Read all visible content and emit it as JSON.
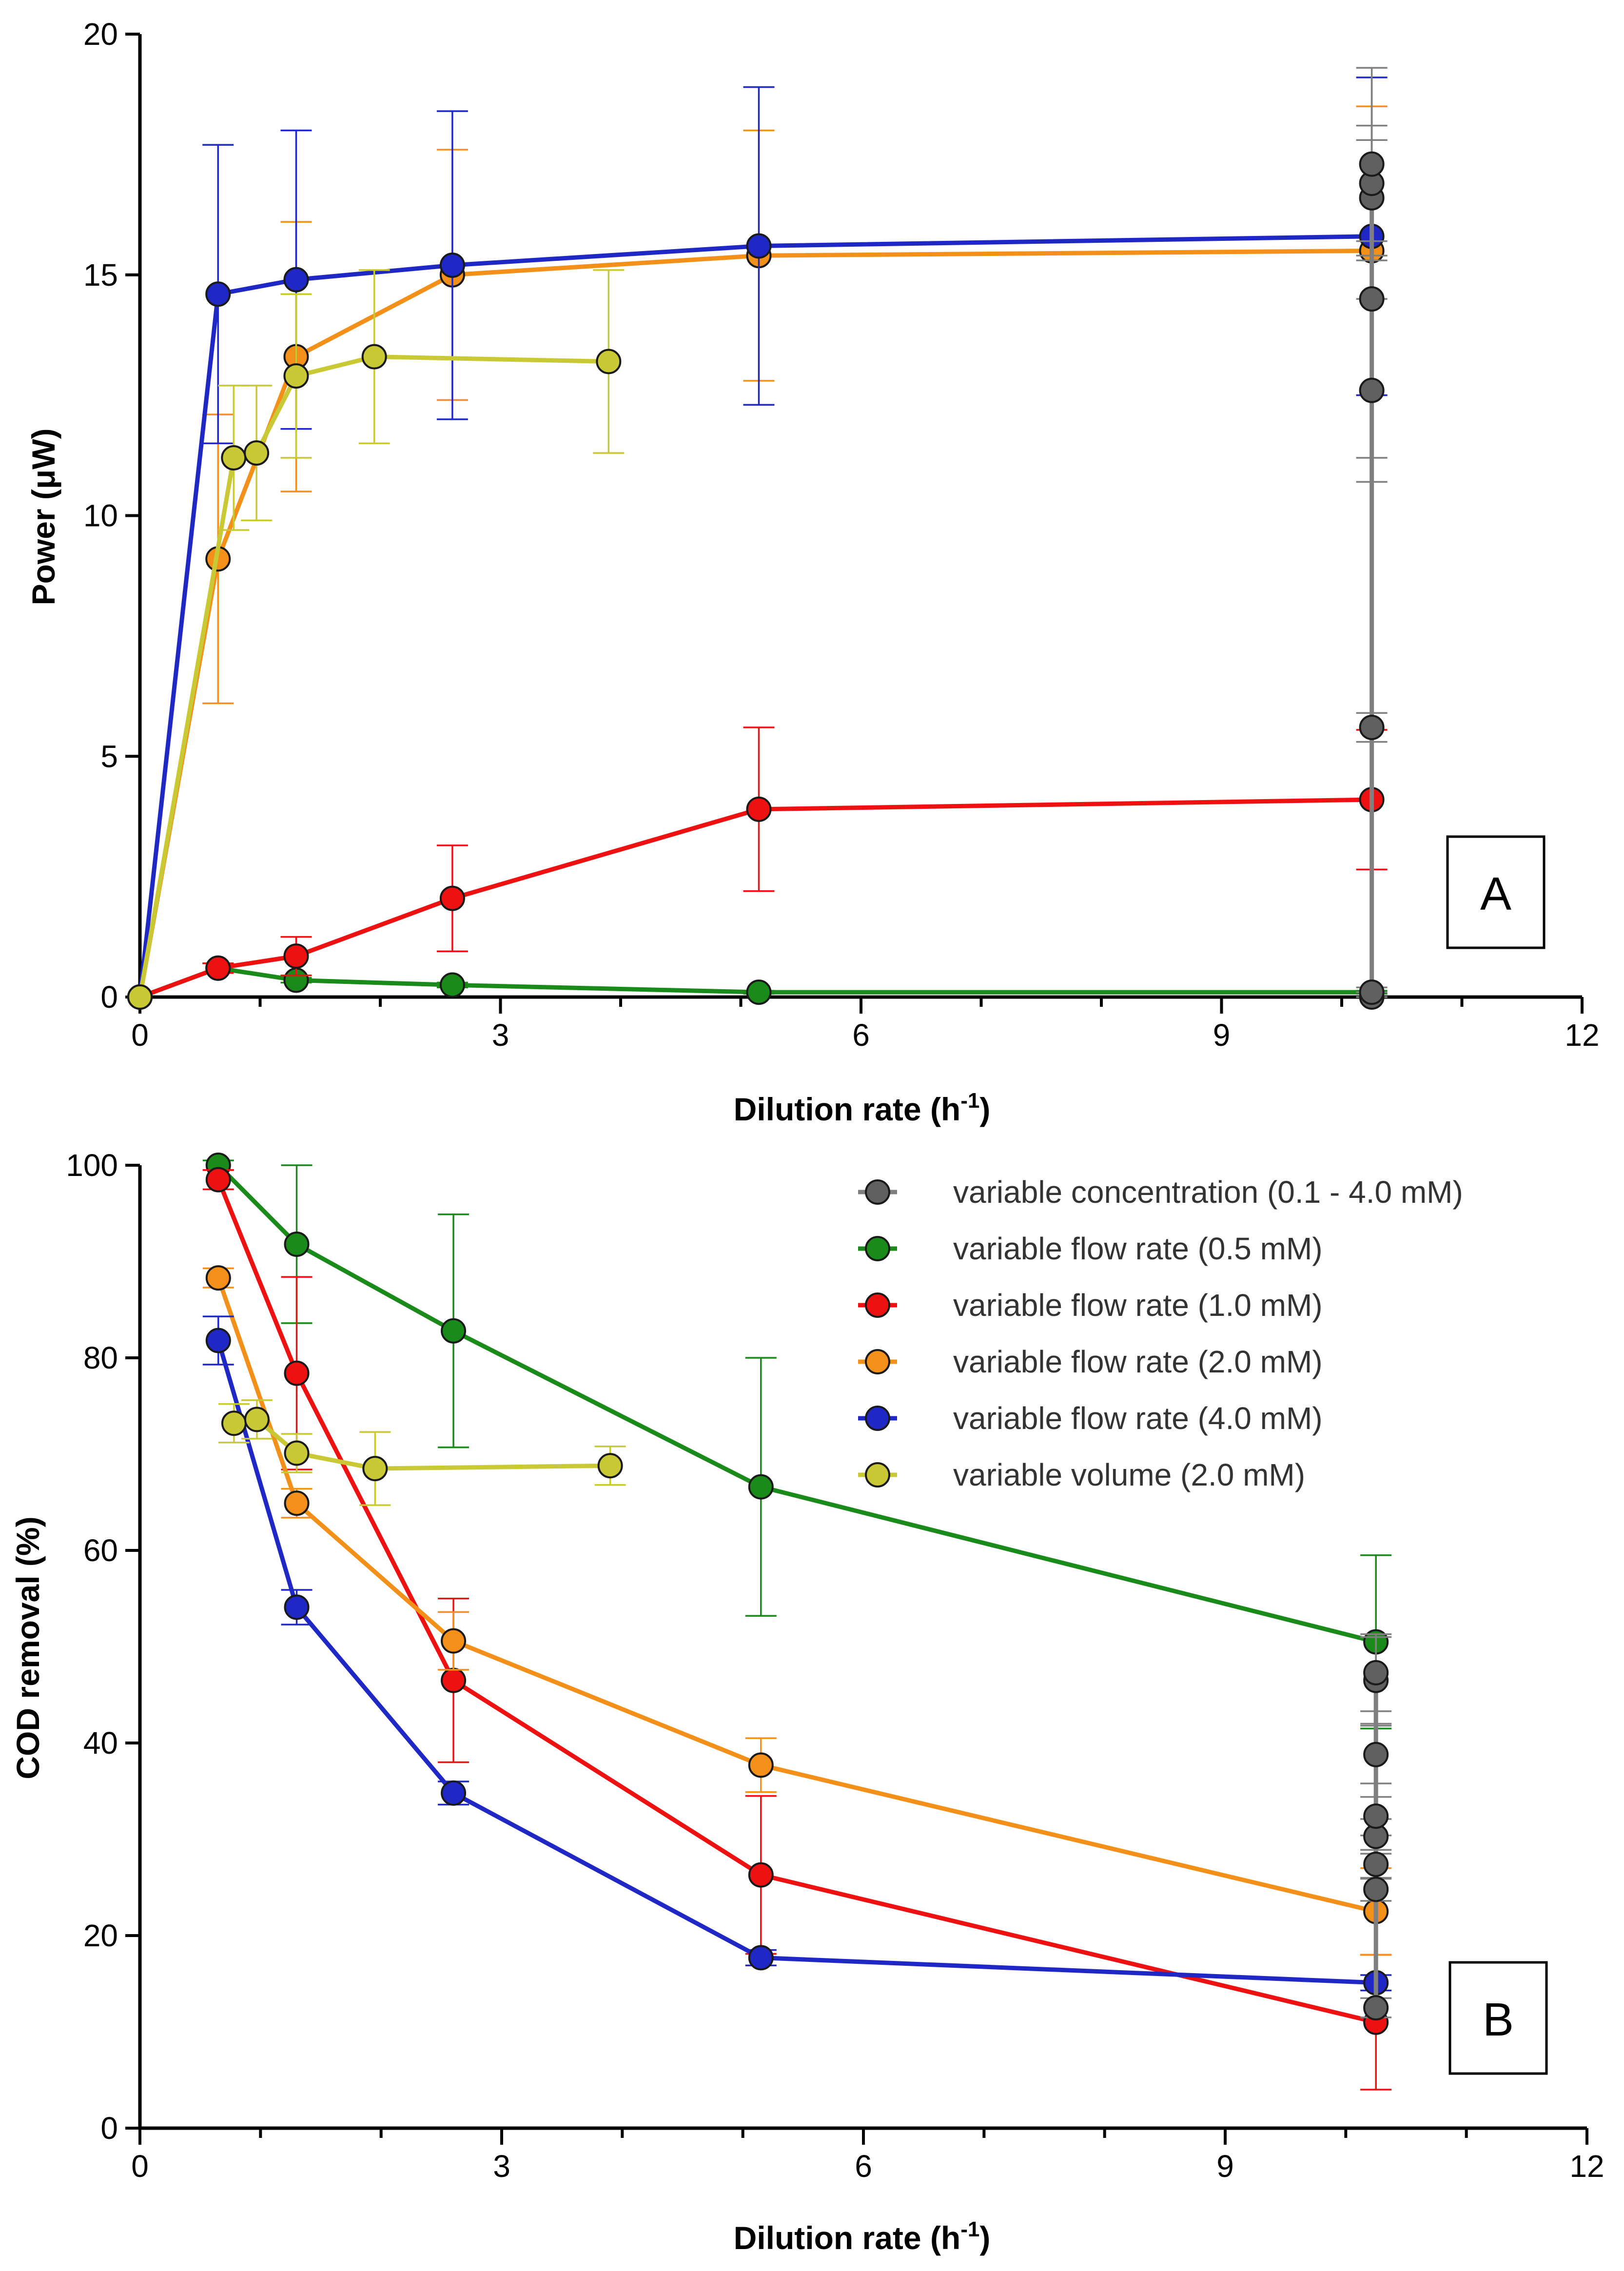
{
  "series_styles": [
    {
      "name": "variable concentration (0.1 - 4.0 mM)",
      "color": "#7f7f7f",
      "marker": "#606060"
    },
    {
      "name": "variable flow rate (0.5 mM)",
      "color": "#1a8a1a",
      "marker": "#1a8a1a"
    },
    {
      "name": "variable flow rate (1.0 mM)",
      "color": "#ee1111",
      "marker": "#ee1111"
    },
    {
      "name": "variable flow rate (2.0 mM)",
      "color": "#f39019",
      "marker": "#f39019"
    },
    {
      "name": "variable flow rate (4.0 mM)",
      "color": "#1f28c4",
      "marker": "#1f28c4"
    },
    {
      "name": "variable volume (2.0 mM)",
      "color": "#c9c935",
      "marker": "#c9c935"
    }
  ],
  "legend": {
    "items": [
      "variable concentration (0.1 - 4.0 mM)",
      "variable flow rate (0.5 mM)",
      "variable flow rate (1.0 mM)",
      "variable flow rate (2.0 mM)",
      "variable flow rate (4.0 mM)",
      "variable volume (2.0 mM)"
    ],
    "placement": "top-right of panel B"
  },
  "chart_data": [
    {
      "type": "line",
      "panel_label": "A",
      "xlabel_main": "Dilution rate (h",
      "xlabel_sup": "-1",
      "xlabel_end": ")",
      "ylabel": "Power (μW)",
      "xlim": [
        0,
        12
      ],
      "ylim": [
        0,
        20
      ],
      "xticks": [
        0,
        3,
        6,
        9,
        12
      ],
      "xtick_labels": [
        "0",
        "3",
        "6",
        "9",
        "12"
      ],
      "yticks": [
        0,
        5,
        10,
        15,
        20
      ],
      "ytick_labels": [
        "0",
        "5",
        "10",
        "15",
        "20"
      ],
      "series": [
        {
          "name": "variable concentration (0.1 - 4.0 mM)",
          "x": [
            10.25,
            10.25,
            10.25,
            10.25,
            10.25,
            10.25,
            10.25,
            10.25
          ],
          "y": [
            0.0,
            5.6,
            12.6,
            14.5,
            16.6,
            16.9,
            17.3,
            0.1
          ],
          "err": [
            0.1,
            0.3,
            1.9,
            3.3,
            1.2,
            1.2,
            2.0,
            0.1
          ]
        },
        {
          "name": "variable flow rate (0.5 mM)",
          "x": [
            0,
            0.65,
            1.3,
            2.6,
            5.15,
            10.25
          ],
          "y": [
            0,
            0.6,
            0.35,
            0.25,
            0.1,
            0.1
          ],
          "err": [
            0,
            0.1,
            0.05,
            0.05,
            0.03,
            0.03
          ]
        },
        {
          "name": "variable flow rate (1.0 mM)",
          "x": [
            0,
            0.65,
            1.3,
            2.6,
            5.15,
            10.25
          ],
          "y": [
            0,
            0.6,
            0.85,
            2.05,
            3.9,
            4.1
          ],
          "err": [
            0,
            0.1,
            0.4,
            1.1,
            1.7,
            1.45
          ]
        },
        {
          "name": "variable flow rate (2.0 mM)",
          "x": [
            0,
            0.65,
            1.3,
            2.6,
            5.15,
            10.25
          ],
          "y": [
            0,
            9.1,
            13.3,
            15.0,
            15.4,
            15.5
          ],
          "err": [
            0,
            3.0,
            2.8,
            2.6,
            2.6,
            3.0
          ]
        },
        {
          "name": "variable flow rate (4.0 mM)",
          "x": [
            0,
            0.65,
            1.3,
            2.6,
            5.15,
            10.25
          ],
          "y": [
            0,
            14.6,
            14.9,
            15.2,
            15.6,
            15.8
          ],
          "err": [
            0,
            3.1,
            3.1,
            3.2,
            3.3,
            3.3
          ]
        },
        {
          "name": "variable volume (2.0 mM)",
          "x": [
            0,
            0.78,
            0.97,
            1.3,
            1.95,
            3.9
          ],
          "y": [
            0,
            11.2,
            11.3,
            12.9,
            13.3,
            13.2
          ],
          "err": [
            0,
            1.5,
            1.4,
            1.7,
            1.8,
            1.9
          ]
        }
      ]
    },
    {
      "type": "line",
      "panel_label": "B",
      "xlabel_main": "Dilution rate (h",
      "xlabel_sup": "-1",
      "xlabel_end": ")",
      "ylabel": "COD removal (%)",
      "xlim": [
        0,
        12
      ],
      "ylim": [
        0,
        100
      ],
      "xticks": [
        0,
        3,
        6,
        9,
        12
      ],
      "xtick_labels": [
        "0",
        "3",
        "6",
        "9",
        "12"
      ],
      "yticks": [
        0,
        20,
        40,
        60,
        80,
        100
      ],
      "ytick_labels": [
        "0",
        "20",
        "40",
        "60",
        "80",
        "100"
      ],
      "series": [
        {
          "name": "variable concentration (0.1 - 4.0 mM)",
          "x": [
            10.25,
            10.25,
            10.25,
            10.25,
            10.25,
            10.25,
            10.25,
            10.25
          ],
          "y": [
            12.5,
            24.8,
            27.4,
            30.3,
            32.4,
            38.8,
            46.5,
            47.3
          ],
          "err": [
            1.0,
            1.2,
            1.5,
            1.8,
            2.0,
            3.0,
            4.5,
            4.0
          ]
        },
        {
          "name": "variable flow rate (0.5 mM)",
          "x": [
            0.65,
            1.3,
            2.6,
            5.15,
            10.25
          ],
          "y": [
            100,
            91.8,
            82.8,
            66.6,
            50.5
          ],
          "err": [
            0.5,
            8.2,
            12.1,
            13.4,
            9.0
          ]
        },
        {
          "name": "variable flow rate (1.0 mM)",
          "x": [
            0.65,
            1.3,
            2.6,
            5.15,
            10.25
          ],
          "y": [
            98.5,
            78.4,
            46.5,
            26.3,
            11.0
          ],
          "err": [
            1.0,
            10.0,
            8.5,
            8.2,
            7.0
          ]
        },
        {
          "name": "variable flow rate (2.0 mM)",
          "x": [
            0.65,
            1.3,
            2.6,
            5.15,
            10.25
          ],
          "y": [
            88.3,
            64.9,
            50.6,
            37.7,
            22.5
          ],
          "err": [
            1.0,
            1.5,
            3.0,
            2.8,
            4.5
          ]
        },
        {
          "name": "variable flow rate (4.0 mM)",
          "x": [
            0.65,
            1.3,
            2.6,
            5.15,
            10.25
          ],
          "y": [
            81.8,
            54.1,
            34.8,
            17.7,
            15.1
          ],
          "err": [
            2.5,
            1.8,
            1.2,
            0.8,
            0.8
          ]
        },
        {
          "name": "variable volume (2.0 mM)",
          "x": [
            0.78,
            0.97,
            1.3,
            1.95,
            3.9
          ],
          "y": [
            73.2,
            73.6,
            70.1,
            68.5,
            68.8
          ],
          "err": [
            2.0,
            2.0,
            2.0,
            3.8,
            2.0
          ]
        }
      ]
    }
  ]
}
